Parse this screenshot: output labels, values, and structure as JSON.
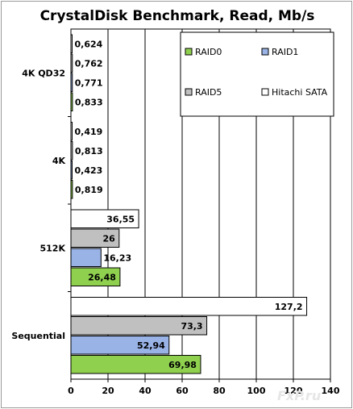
{
  "chart_data": {
    "type": "bar",
    "orientation": "horizontal",
    "title": "CrystalDisk Benchmark, Read, Mb/s",
    "xlabel": "",
    "ylabel": "",
    "categories": [
      "4K QD32",
      "4K",
      "512K",
      "Sequential"
    ],
    "series": [
      {
        "name": "Hitachi SATA",
        "color": "#ffffff",
        "values": [
          0.624,
          0.419,
          36.55,
          127.2
        ],
        "labels": [
          "0,624",
          "0,419",
          "36,55",
          "127,2"
        ]
      },
      {
        "name": "RAID5",
        "color": "#c0c0c0",
        "values": [
          0.762,
          0.813,
          26,
          73.3
        ],
        "labels": [
          "0,762",
          "0,813",
          "26",
          "73,3"
        ]
      },
      {
        "name": "RAID1",
        "color": "#99b3e6",
        "values": [
          0.771,
          0.423,
          16.23,
          52.94
        ],
        "labels": [
          "0,771",
          "0,423",
          "16,23",
          "52,94"
        ]
      },
      {
        "name": "RAID0",
        "color": "#8fd14f",
        "values": [
          0.833,
          0.819,
          26.48,
          69.98
        ],
        "labels": [
          "0,833",
          "0,819",
          "26,48",
          "69,98"
        ]
      }
    ],
    "xlim": [
      0,
      140
    ],
    "xticks": [
      "0",
      "20",
      "40",
      "60",
      "80",
      "100",
      "120",
      "140"
    ],
    "grid": true,
    "legend_position": "top-right",
    "legend_order": [
      "RAID0",
      "RAID1",
      "RAID5",
      "Hitachi SATA"
    ],
    "watermark": "FxP.ru"
  }
}
